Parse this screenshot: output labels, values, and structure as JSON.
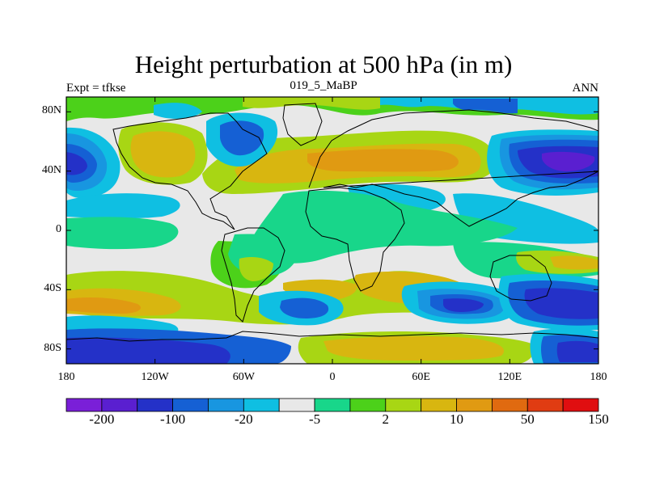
{
  "title": "Height perturbation at 500 hPa (in m)",
  "left_label": "Expt = tfkse",
  "center_label": "019_5_MaBP",
  "right_label": "ANN",
  "map_axes": {
    "lat_ticks": [
      {
        "value": 80,
        "label": "80N"
      },
      {
        "value": 40,
        "label": "40N"
      },
      {
        "value": 0,
        "label": "0"
      },
      {
        "value": -40,
        "label": "40S"
      },
      {
        "value": -80,
        "label": "80S"
      }
    ],
    "lon_ticks": [
      {
        "value": -180,
        "label": "180"
      },
      {
        "value": -120,
        "label": "120W"
      },
      {
        "value": -60,
        "label": "60W"
      },
      {
        "value": 0,
        "label": "0"
      },
      {
        "value": 60,
        "label": "60E"
      },
      {
        "value": 120,
        "label": "120E"
      },
      {
        "value": 180,
        "label": "180"
      }
    ]
  },
  "colorbar": {
    "colors": [
      "#7a1fd8",
      "#5a1fd0",
      "#2431c8",
      "#1560d4",
      "#1896e0",
      "#0fbfe2",
      "#e8e8e8",
      "#18d68a",
      "#4cd11a",
      "#a8d614",
      "#d8b610",
      "#e09a12",
      "#e06a10",
      "#e03c12",
      "#e00e10"
    ],
    "labels": [
      {
        "boundary": 1,
        "text": "-200"
      },
      {
        "boundary": 3,
        "text": "-100"
      },
      {
        "boundary": 5,
        "text": "-20"
      },
      {
        "boundary": 7,
        "text": "-5"
      },
      {
        "boundary": 9,
        "text": "2"
      },
      {
        "boundary": 11,
        "text": "10"
      },
      {
        "boundary": 13,
        "text": "50"
      },
      {
        "boundary": 15,
        "text": "150"
      }
    ]
  }
}
